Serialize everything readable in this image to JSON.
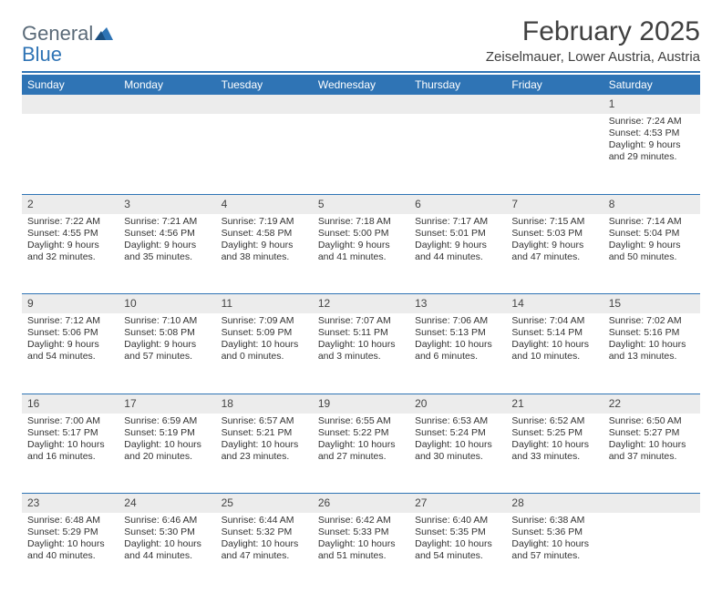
{
  "logo": {
    "word1": "General",
    "word2": "Blue"
  },
  "title": "February 2025",
  "location": "Zeiselmauer, Lower Austria, Austria",
  "colors": {
    "brand_blue": "#2f74b5",
    "header_text": "#ffffff",
    "daynum_bg": "#ececec",
    "text": "#333333",
    "logo_gray": "#5a6a78"
  },
  "weekdays": [
    "Sunday",
    "Monday",
    "Tuesday",
    "Wednesday",
    "Thursday",
    "Friday",
    "Saturday"
  ],
  "weeks": [
    {
      "nums": [
        "",
        "",
        "",
        "",
        "",
        "",
        "1"
      ],
      "cells": [
        null,
        null,
        null,
        null,
        null,
        null,
        {
          "sunrise": "Sunrise: 7:24 AM",
          "sunset": "Sunset: 4:53 PM",
          "day1": "Daylight: 9 hours",
          "day2": "and 29 minutes."
        }
      ]
    },
    {
      "nums": [
        "2",
        "3",
        "4",
        "5",
        "6",
        "7",
        "8"
      ],
      "cells": [
        {
          "sunrise": "Sunrise: 7:22 AM",
          "sunset": "Sunset: 4:55 PM",
          "day1": "Daylight: 9 hours",
          "day2": "and 32 minutes."
        },
        {
          "sunrise": "Sunrise: 7:21 AM",
          "sunset": "Sunset: 4:56 PM",
          "day1": "Daylight: 9 hours",
          "day2": "and 35 minutes."
        },
        {
          "sunrise": "Sunrise: 7:19 AM",
          "sunset": "Sunset: 4:58 PM",
          "day1": "Daylight: 9 hours",
          "day2": "and 38 minutes."
        },
        {
          "sunrise": "Sunrise: 7:18 AM",
          "sunset": "Sunset: 5:00 PM",
          "day1": "Daylight: 9 hours",
          "day2": "and 41 minutes."
        },
        {
          "sunrise": "Sunrise: 7:17 AM",
          "sunset": "Sunset: 5:01 PM",
          "day1": "Daylight: 9 hours",
          "day2": "and 44 minutes."
        },
        {
          "sunrise": "Sunrise: 7:15 AM",
          "sunset": "Sunset: 5:03 PM",
          "day1": "Daylight: 9 hours",
          "day2": "and 47 minutes."
        },
        {
          "sunrise": "Sunrise: 7:14 AM",
          "sunset": "Sunset: 5:04 PM",
          "day1": "Daylight: 9 hours",
          "day2": "and 50 minutes."
        }
      ]
    },
    {
      "nums": [
        "9",
        "10",
        "11",
        "12",
        "13",
        "14",
        "15"
      ],
      "cells": [
        {
          "sunrise": "Sunrise: 7:12 AM",
          "sunset": "Sunset: 5:06 PM",
          "day1": "Daylight: 9 hours",
          "day2": "and 54 minutes."
        },
        {
          "sunrise": "Sunrise: 7:10 AM",
          "sunset": "Sunset: 5:08 PM",
          "day1": "Daylight: 9 hours",
          "day2": "and 57 minutes."
        },
        {
          "sunrise": "Sunrise: 7:09 AM",
          "sunset": "Sunset: 5:09 PM",
          "day1": "Daylight: 10 hours",
          "day2": "and 0 minutes."
        },
        {
          "sunrise": "Sunrise: 7:07 AM",
          "sunset": "Sunset: 5:11 PM",
          "day1": "Daylight: 10 hours",
          "day2": "and 3 minutes."
        },
        {
          "sunrise": "Sunrise: 7:06 AM",
          "sunset": "Sunset: 5:13 PM",
          "day1": "Daylight: 10 hours",
          "day2": "and 6 minutes."
        },
        {
          "sunrise": "Sunrise: 7:04 AM",
          "sunset": "Sunset: 5:14 PM",
          "day1": "Daylight: 10 hours",
          "day2": "and 10 minutes."
        },
        {
          "sunrise": "Sunrise: 7:02 AM",
          "sunset": "Sunset: 5:16 PM",
          "day1": "Daylight: 10 hours",
          "day2": "and 13 minutes."
        }
      ]
    },
    {
      "nums": [
        "16",
        "17",
        "18",
        "19",
        "20",
        "21",
        "22"
      ],
      "cells": [
        {
          "sunrise": "Sunrise: 7:00 AM",
          "sunset": "Sunset: 5:17 PM",
          "day1": "Daylight: 10 hours",
          "day2": "and 16 minutes."
        },
        {
          "sunrise": "Sunrise: 6:59 AM",
          "sunset": "Sunset: 5:19 PM",
          "day1": "Daylight: 10 hours",
          "day2": "and 20 minutes."
        },
        {
          "sunrise": "Sunrise: 6:57 AM",
          "sunset": "Sunset: 5:21 PM",
          "day1": "Daylight: 10 hours",
          "day2": "and 23 minutes."
        },
        {
          "sunrise": "Sunrise: 6:55 AM",
          "sunset": "Sunset: 5:22 PM",
          "day1": "Daylight: 10 hours",
          "day2": "and 27 minutes."
        },
        {
          "sunrise": "Sunrise: 6:53 AM",
          "sunset": "Sunset: 5:24 PM",
          "day1": "Daylight: 10 hours",
          "day2": "and 30 minutes."
        },
        {
          "sunrise": "Sunrise: 6:52 AM",
          "sunset": "Sunset: 5:25 PM",
          "day1": "Daylight: 10 hours",
          "day2": "and 33 minutes."
        },
        {
          "sunrise": "Sunrise: 6:50 AM",
          "sunset": "Sunset: 5:27 PM",
          "day1": "Daylight: 10 hours",
          "day2": "and 37 minutes."
        }
      ]
    },
    {
      "nums": [
        "23",
        "24",
        "25",
        "26",
        "27",
        "28",
        ""
      ],
      "cells": [
        {
          "sunrise": "Sunrise: 6:48 AM",
          "sunset": "Sunset: 5:29 PM",
          "day1": "Daylight: 10 hours",
          "day2": "and 40 minutes."
        },
        {
          "sunrise": "Sunrise: 6:46 AM",
          "sunset": "Sunset: 5:30 PM",
          "day1": "Daylight: 10 hours",
          "day2": "and 44 minutes."
        },
        {
          "sunrise": "Sunrise: 6:44 AM",
          "sunset": "Sunset: 5:32 PM",
          "day1": "Daylight: 10 hours",
          "day2": "and 47 minutes."
        },
        {
          "sunrise": "Sunrise: 6:42 AM",
          "sunset": "Sunset: 5:33 PM",
          "day1": "Daylight: 10 hours",
          "day2": "and 51 minutes."
        },
        {
          "sunrise": "Sunrise: 6:40 AM",
          "sunset": "Sunset: 5:35 PM",
          "day1": "Daylight: 10 hours",
          "day2": "and 54 minutes."
        },
        {
          "sunrise": "Sunrise: 6:38 AM",
          "sunset": "Sunset: 5:36 PM",
          "day1": "Daylight: 10 hours",
          "day2": "and 57 minutes."
        },
        null
      ]
    }
  ]
}
